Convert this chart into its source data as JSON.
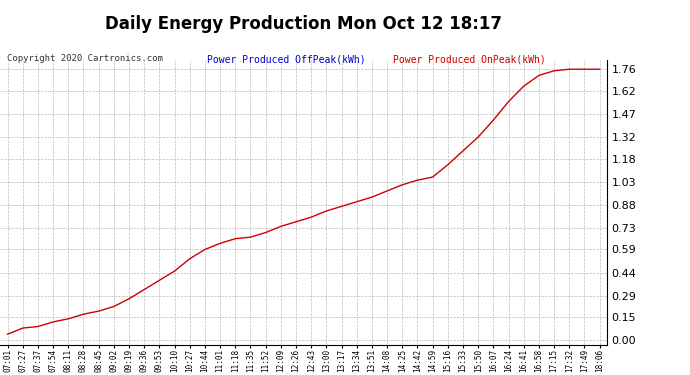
{
  "title": "Daily Energy Production Mon Oct 12 18:17",
  "title_fontsize": 12,
  "copyright_text": "Copyright 2020 Cartronics.com",
  "legend_labels": [
    "Power Produced OffPeak(kWh)",
    "Power Produced OnPeak(kWh)"
  ],
  "legend_colors": [
    "#0000cc",
    "#cc0000"
  ],
  "line_color": "#cc0000",
  "background_color": "#ffffff",
  "grid_color": "#bbbbbb",
  "yticks": [
    0.0,
    0.15,
    0.29,
    0.44,
    0.59,
    0.73,
    0.88,
    1.03,
    1.18,
    1.32,
    1.47,
    1.62,
    1.76
  ],
  "ylim": [
    -0.03,
    1.82
  ],
  "xtick_labels": [
    "07:01",
    "07:27",
    "07:37",
    "07:54",
    "08:11",
    "08:28",
    "08:45",
    "09:02",
    "09:19",
    "09:36",
    "09:53",
    "10:10",
    "10:27",
    "10:44",
    "11:01",
    "11:18",
    "11:35",
    "11:52",
    "12:09",
    "12:26",
    "12:43",
    "13:00",
    "13:17",
    "13:34",
    "13:51",
    "14:08",
    "14:25",
    "14:42",
    "14:59",
    "15:16",
    "15:33",
    "15:50",
    "16:07",
    "16:24",
    "16:41",
    "16:58",
    "17:15",
    "17:32",
    "17:49",
    "18:06"
  ],
  "x_indices": [
    0,
    1,
    2,
    3,
    4,
    5,
    6,
    7,
    8,
    9,
    10,
    11,
    12,
    13,
    14,
    15,
    16,
    17,
    18,
    19,
    20,
    21,
    22,
    23,
    24,
    25,
    26,
    27,
    28,
    29,
    30,
    31,
    32,
    33,
    34,
    35,
    36,
    37,
    38,
    39
  ],
  "y_data": [
    0.04,
    0.08,
    0.09,
    0.12,
    0.14,
    0.17,
    0.19,
    0.22,
    0.27,
    0.33,
    0.39,
    0.45,
    0.53,
    0.59,
    0.63,
    0.66,
    0.67,
    0.7,
    0.74,
    0.77,
    0.8,
    0.84,
    0.87,
    0.9,
    0.93,
    0.97,
    1.01,
    1.04,
    1.06,
    1.14,
    1.23,
    1.32,
    1.43,
    1.55,
    1.65,
    1.72,
    1.75,
    1.76,
    1.76,
    1.76
  ]
}
